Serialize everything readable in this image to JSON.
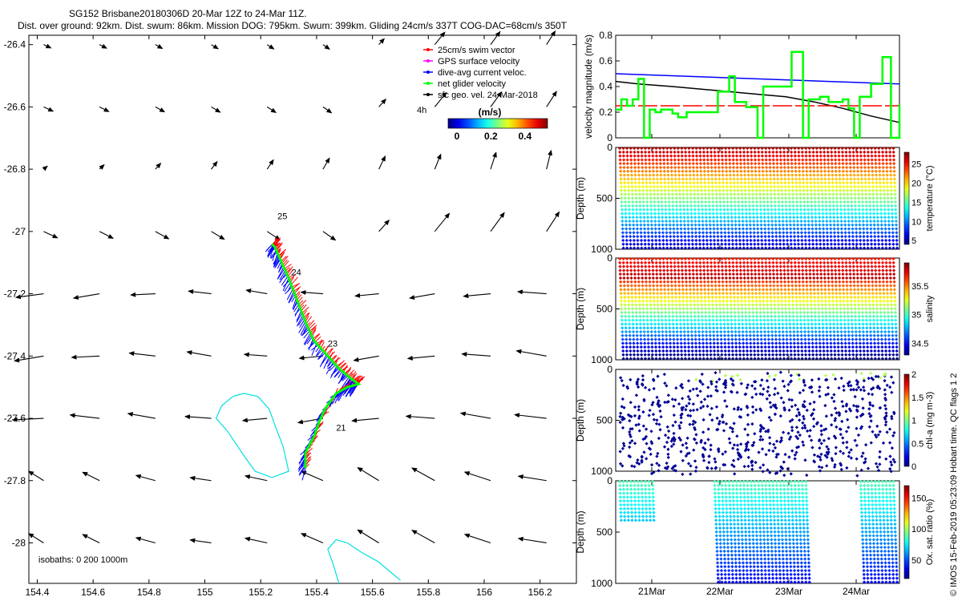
{
  "header": {
    "line1": "SG152 Brisbane20180306D 20-Mar 12Z to 24-Mar 11Z.",
    "line2": "Dist. over ground: 92km. Dist. swum: 86km. Mission DOG: 795km. Swum: 399km. Gliding 24cm/s 337T COG-DAC=68cm/s 350T"
  },
  "credit": "© IMOS 15-Feb-2019 05:23:09 Hobart time. QC flags 1  2",
  "colors": {
    "swim": "#ff0000",
    "gps": "#ff00ff",
    "dac": "#0000ff",
    "net": "#00ff00",
    "geo": "#000000",
    "isobath": "#00e0e0",
    "axis": "#000000"
  },
  "chart_data": [
    {
      "id": "map",
      "type": "quiver",
      "xlim": [
        154.37,
        156.33
      ],
      "ylim": [
        -28.13,
        -26.37
      ],
      "xticks": [
        "154.4",
        "154.6",
        "154.8",
        "155",
        "155.2",
        "155.4",
        "155.6",
        "155.8",
        "156",
        "156.2"
      ],
      "yticks": [
        "-26.4",
        "-26.6",
        "-26.8",
        "-27",
        "-27.2",
        "-27.4",
        "-27.6",
        "-27.8",
        "-28"
      ],
      "legend": [
        {
          "label": "25cm/s swim vector",
          "color": "#ff0000"
        },
        {
          "label": "GPS surface velocity",
          "color": "#ff00ff"
        },
        {
          "label": "dive-avg current veloc.",
          "color": "#0000ff"
        },
        {
          "label": "net glider velocity",
          "color": "#00ff00"
        },
        {
          "label": "sfc geo. vel. 24-Mar-2018",
          "color": "#000000"
        }
      ],
      "time_marker": "4h",
      "colorbar": {
        "label": "(m/s)",
        "min": 0,
        "max": 0.5,
        "ticks": [
          "0",
          "0.2",
          "0.4"
        ]
      },
      "isobaths_note": "isobaths: 0   200   1000m",
      "day_labels": [
        {
          "text": "25",
          "lon": 155.26,
          "lat": -26.96
        },
        {
          "text": "24",
          "lon": 155.31,
          "lat": -27.14
        },
        {
          "text": "23",
          "lon": 155.44,
          "lat": -27.37
        },
        {
          "text": "21",
          "lon": 155.47,
          "lat": -27.64
        }
      ],
      "track": [
        [
          155.36,
          -27.76
        ],
        [
          155.36,
          -27.71
        ],
        [
          155.39,
          -27.66
        ],
        [
          155.41,
          -27.61
        ],
        [
          155.43,
          -27.57
        ],
        [
          155.47,
          -27.52
        ],
        [
          155.51,
          -27.5
        ],
        [
          155.55,
          -27.49
        ],
        [
          155.52,
          -27.47
        ],
        [
          155.48,
          -27.44
        ],
        [
          155.44,
          -27.4
        ],
        [
          155.39,
          -27.35
        ],
        [
          155.36,
          -27.29
        ],
        [
          155.33,
          -27.22
        ],
        [
          155.3,
          -27.15
        ],
        [
          155.27,
          -27.09
        ],
        [
          155.25,
          -27.05
        ],
        [
          155.24,
          -27.04
        ]
      ],
      "isobath_1000": [
        [
          155.1,
          -27.53
        ],
        [
          155.06,
          -27.56
        ],
        [
          155.04,
          -27.6
        ],
        [
          155.08,
          -27.64
        ],
        [
          155.11,
          -27.68
        ],
        [
          155.14,
          -27.72
        ],
        [
          155.18,
          -27.77
        ],
        [
          155.24,
          -27.79
        ],
        [
          155.3,
          -27.77
        ],
        [
          155.28,
          -27.69
        ],
        [
          155.25,
          -27.62
        ],
        [
          155.23,
          -27.57
        ],
        [
          155.19,
          -27.53
        ],
        [
          155.14,
          -27.52
        ],
        [
          155.1,
          -27.53
        ]
      ],
      "isobath_200": [
        [
          155.48,
          -28.13
        ],
        [
          155.46,
          -28.07
        ],
        [
          155.44,
          -28.02
        ],
        [
          155.47,
          -27.99
        ],
        [
          155.51,
          -28.0
        ],
        [
          155.56,
          -28.03
        ],
        [
          155.62,
          -28.06
        ],
        [
          155.66,
          -28.09
        ],
        [
          155.7,
          -28.12
        ]
      ]
    },
    {
      "id": "velocity",
      "type": "line",
      "ylabel": "velocity magnitude (m/s)",
      "ylim": [
        0,
        0.8
      ],
      "yticks": [
        "0",
        "0.2",
        "0.4",
        "0.6",
        "0.8"
      ],
      "x": [
        0,
        1
      ],
      "series": [
        {
          "name": "dive-avg current veloc.",
          "color": "#0000ff",
          "t": [
            0,
            1
          ],
          "v": [
            0.5,
            0.42
          ]
        },
        {
          "name": "sfc geo. vel.",
          "color": "#000000",
          "t": [
            0,
            0.08,
            0.2,
            0.35,
            0.5,
            0.6,
            0.7,
            0.8,
            0.9,
            1.0
          ],
          "v": [
            0.44,
            0.42,
            0.4,
            0.37,
            0.34,
            0.32,
            0.28,
            0.23,
            0.17,
            0.12
          ]
        },
        {
          "name": "25cm/s swim vector",
          "color": "#ff0000",
          "t": [
            0,
            1
          ],
          "v": [
            0.25,
            0.25
          ]
        },
        {
          "name": "net glider velocity",
          "color": "#00ff00",
          "t": [
            0,
            0.02,
            0.04,
            0.06,
            0.08,
            0.1,
            0.12,
            0.14,
            0.16,
            0.2,
            0.22,
            0.25,
            0.3,
            0.34,
            0.36,
            0.4,
            0.42,
            0.46,
            0.5,
            0.52,
            0.6,
            0.62,
            0.66,
            0.68,
            0.72,
            0.75,
            0.8,
            0.82,
            0.84,
            0.86,
            0.9,
            0.94,
            0.97,
            1.0
          ],
          "v": [
            0.22,
            0.3,
            0.25,
            0.3,
            0.46,
            0.0,
            0.22,
            0.2,
            0.22,
            0.19,
            0.16,
            0.2,
            0.2,
            0.2,
            0.36,
            0.48,
            0.28,
            0.24,
            0.0,
            0.4,
            0.4,
            0.67,
            0.0,
            0.3,
            0.32,
            0.28,
            0.3,
            0.23,
            0.0,
            0.32,
            0.42,
            0.63,
            0.0,
            0.26
          ]
        }
      ]
    },
    {
      "id": "temperature",
      "type": "scatter",
      "ylabel": "Depth (m)",
      "cblabel": "temperature (°C)",
      "ylim": [
        1000,
        0
      ],
      "yticks": [
        "0",
        "500",
        "1000"
      ],
      "cbticks": [
        "5",
        "10",
        "15",
        "20",
        "25"
      ],
      "cbrange": [
        4,
        28
      ]
    },
    {
      "id": "salinity",
      "type": "scatter",
      "ylabel": "Depth (m)",
      "cblabel": "salinity",
      "ylim": [
        1000,
        0
      ],
      "yticks": [
        "0",
        "500",
        "1000"
      ],
      "cbticks": [
        "34.5",
        "35",
        "35.5"
      ],
      "cbrange": [
        34.3,
        35.9
      ]
    },
    {
      "id": "chla",
      "type": "scatter",
      "ylabel": "Depth (m)",
      "cblabel": "chl-a (mg m-3)",
      "ylim": [
        1000,
        0
      ],
      "yticks": [
        "0",
        "500",
        "1000"
      ],
      "cbticks": [
        "0",
        "0.5",
        "1",
        "1.5",
        "2"
      ],
      "cbrange": [
        0,
        2
      ]
    },
    {
      "id": "oxygen",
      "type": "scatter",
      "ylabel": "Depth (m)",
      "cblabel": "Ox. sat. ratio (%)",
      "ylim": [
        1000,
        0
      ],
      "yticks": [
        "0",
        "500",
        "1000"
      ],
      "cbticks": [
        "50",
        "100",
        "150"
      ],
      "cbrange": [
        20,
        170
      ],
      "xticks": [
        "21Mar",
        "22Mar",
        "23Mar",
        "24Mar"
      ]
    }
  ]
}
